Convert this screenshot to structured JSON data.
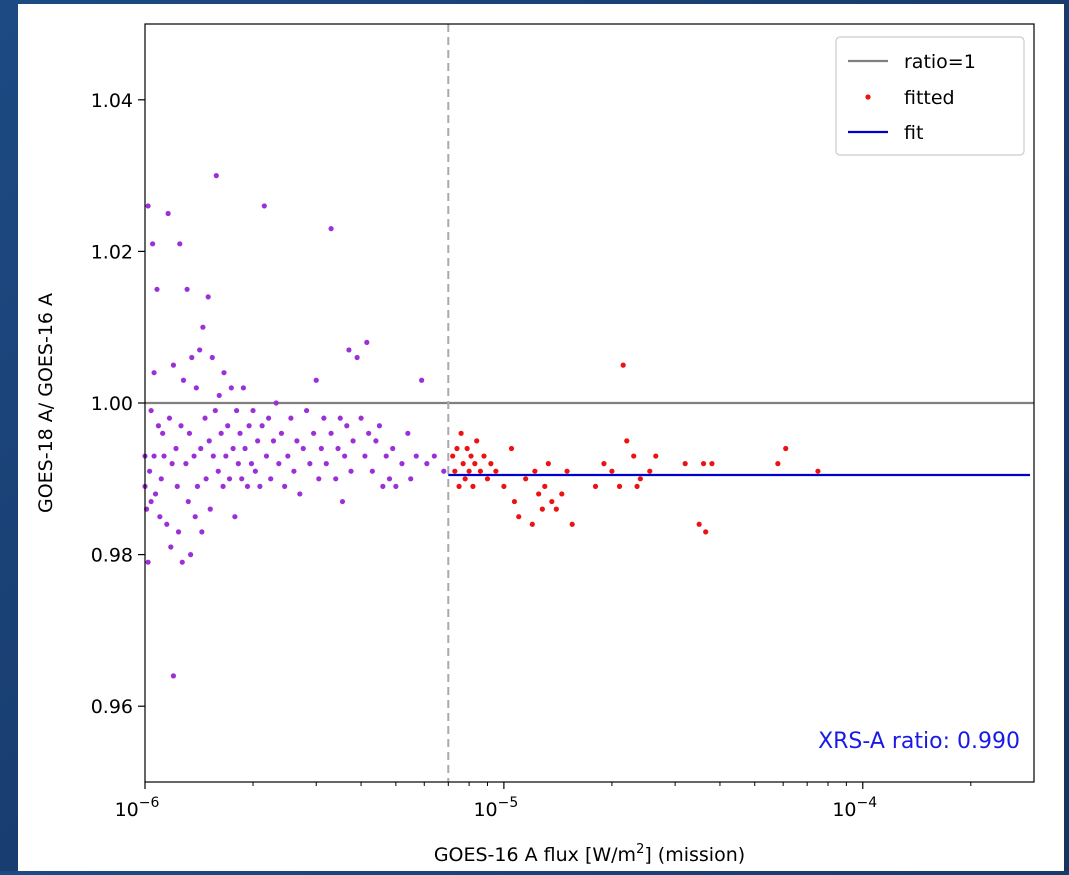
{
  "chart_data": {
    "type": "scatter",
    "xscale": "log",
    "xlim": [
      1e-06,
      0.0003
    ],
    "ylim": [
      0.95,
      1.05
    ],
    "xlabel_main": "GOES-16 A flux [W/m",
    "xlabel_sup": "2",
    "xlabel_tail": "] (mission)",
    "ylabel": "GOES-18 A/ GOES-16 A",
    "yticks": [
      0.96,
      0.98,
      1.0,
      1.02,
      1.04
    ],
    "ytick_labels": [
      "0.96",
      "0.98",
      "1.00",
      "1.02",
      "1.04"
    ],
    "xticks": [
      {
        "value": 1e-06,
        "base": "10",
        "exp": "−6"
      },
      {
        "value": 1e-05,
        "base": "10",
        "exp": "−5"
      },
      {
        "value": 0.0001,
        "base": "10",
        "exp": "−4"
      }
    ],
    "grid": false,
    "legend_position": "top-right",
    "reference_line": {
      "label": "ratio=1",
      "y": 1.0,
      "color": "#808080"
    },
    "threshold_line": {
      "x": 7e-06,
      "color": "#aaaaaa",
      "style": "dashed"
    },
    "fit_line": {
      "label": "fit",
      "y": 0.9905,
      "x_range": [
        7e-06,
        0.0003
      ],
      "color": "#0000cc"
    },
    "annotation": {
      "text": "XRS-A ratio: 0.990",
      "color": "#1a1ae6"
    },
    "series": [
      {
        "color": "#9b30d9",
        "points": [
          [
            1e-06,
            0.993
          ],
          [
            1e-06,
            0.989
          ],
          [
            1.01e-06,
            0.986
          ],
          [
            1.02e-06,
            0.979
          ],
          [
            1.02e-06,
            1.026
          ],
          [
            1.03e-06,
            0.991
          ],
          [
            1.04e-06,
            0.999
          ],
          [
            1.04e-06,
            0.987
          ],
          [
            1.05e-06,
            1.021
          ],
          [
            1.06e-06,
            1.004
          ],
          [
            1.06e-06,
            0.993
          ],
          [
            1.07e-06,
            0.988
          ],
          [
            1.08e-06,
            1.015
          ],
          [
            1.09e-06,
            0.997
          ],
          [
            1.1e-06,
            0.985
          ],
          [
            1.11e-06,
            0.99
          ],
          [
            1.12e-06,
            0.996
          ],
          [
            1.13e-06,
            0.993
          ],
          [
            1.15e-06,
            0.984
          ],
          [
            1.16e-06,
            1.025
          ],
          [
            1.17e-06,
            0.998
          ],
          [
            1.18e-06,
            0.981
          ],
          [
            1.19e-06,
            0.992
          ],
          [
            1.2e-06,
            0.964
          ],
          [
            1.2e-06,
            1.005
          ],
          [
            1.22e-06,
            0.994
          ],
          [
            1.23e-06,
            0.989
          ],
          [
            1.24e-06,
            0.983
          ],
          [
            1.25e-06,
            1.021
          ],
          [
            1.26e-06,
            0.997
          ],
          [
            1.27e-06,
            0.979
          ],
          [
            1.28e-06,
            1.003
          ],
          [
            1.3e-06,
            0.992
          ],
          [
            1.31e-06,
            1.015
          ],
          [
            1.32e-06,
            0.987
          ],
          [
            1.33e-06,
            0.996
          ],
          [
            1.34e-06,
            0.98
          ],
          [
            1.35e-06,
            1.006
          ],
          [
            1.37e-06,
            0.993
          ],
          [
            1.38e-06,
            0.985
          ],
          [
            1.39e-06,
            1.002
          ],
          [
            1.4e-06,
            0.989
          ],
          [
            1.42e-06,
            1.007
          ],
          [
            1.43e-06,
            0.994
          ],
          [
            1.44e-06,
            0.983
          ],
          [
            1.45e-06,
            1.01
          ],
          [
            1.47e-06,
            0.998
          ],
          [
            1.48e-06,
            0.99
          ],
          [
            1.5e-06,
            1.014
          ],
          [
            1.51e-06,
            0.995
          ],
          [
            1.52e-06,
            0.986
          ],
          [
            1.54e-06,
            1.006
          ],
          [
            1.55e-06,
            0.993
          ],
          [
            1.57e-06,
            0.999
          ],
          [
            1.58e-06,
            1.03
          ],
          [
            1.6e-06,
            0.991
          ],
          [
            1.61e-06,
            1.001
          ],
          [
            1.63e-06,
            0.996
          ],
          [
            1.65e-06,
            0.989
          ],
          [
            1.66e-06,
            1.004
          ],
          [
            1.68e-06,
            0.993
          ],
          [
            1.7e-06,
            0.997
          ],
          [
            1.72e-06,
            0.99
          ],
          [
            1.74e-06,
            1.002
          ],
          [
            1.76e-06,
            0.994
          ],
          [
            1.78e-06,
            0.985
          ],
          [
            1.8e-06,
            0.999
          ],
          [
            1.82e-06,
            0.992
          ],
          [
            1.84e-06,
            0.996
          ],
          [
            1.86e-06,
            0.99
          ],
          [
            1.88e-06,
            1.002
          ],
          [
            1.9e-06,
            0.994
          ],
          [
            1.93e-06,
            0.989
          ],
          [
            1.95e-06,
            0.997
          ],
          [
            1.98e-06,
            0.992
          ],
          [
            2e-06,
            0.999
          ],
          [
            2.03e-06,
            0.991
          ],
          [
            2.06e-06,
            0.995
          ],
          [
            2.09e-06,
            0.989
          ],
          [
            2.12e-06,
            0.997
          ],
          [
            2.15e-06,
            1.026
          ],
          [
            2.18e-06,
            0.993
          ],
          [
            2.21e-06,
            0.998
          ],
          [
            2.24e-06,
            0.99
          ],
          [
            2.28e-06,
            0.995
          ],
          [
            2.32e-06,
            1.0
          ],
          [
            2.36e-06,
            0.992
          ],
          [
            2.4e-06,
            0.996
          ],
          [
            2.45e-06,
            0.989
          ],
          [
            2.5e-06,
            0.993
          ],
          [
            2.55e-06,
            0.998
          ],
          [
            2.6e-06,
            0.991
          ],
          [
            2.65e-06,
            0.995
          ],
          [
            2.7e-06,
            0.988
          ],
          [
            2.76e-06,
            0.994
          ],
          [
            2.82e-06,
            0.999
          ],
          [
            2.88e-06,
            0.992
          ],
          [
            2.95e-06,
            0.996
          ],
          [
            3e-06,
            1.003
          ],
          [
            3.05e-06,
            0.99
          ],
          [
            3.1e-06,
            0.994
          ],
          [
            3.15e-06,
            0.998
          ],
          [
            3.2e-06,
            0.992
          ],
          [
            3.3e-06,
            1.023
          ],
          [
            3.3e-06,
            0.996
          ],
          [
            3.4e-06,
            0.99
          ],
          [
            3.45e-06,
            0.994
          ],
          [
            3.5e-06,
            0.998
          ],
          [
            3.55e-06,
            0.987
          ],
          [
            3.6e-06,
            0.993
          ],
          [
            3.65e-06,
            0.997
          ],
          [
            3.7e-06,
            1.007
          ],
          [
            3.75e-06,
            0.991
          ],
          [
            3.8e-06,
            0.995
          ],
          [
            3.9e-06,
            1.006
          ],
          [
            4e-06,
            0.998
          ],
          [
            4.1e-06,
            0.993
          ],
          [
            4.15e-06,
            1.008
          ],
          [
            4.2e-06,
            0.996
          ],
          [
            4.3e-06,
            0.991
          ],
          [
            4.4e-06,
            0.995
          ],
          [
            4.5e-06,
            0.997
          ],
          [
            4.6e-06,
            0.989
          ],
          [
            4.7e-06,
            0.993
          ],
          [
            4.8e-06,
            0.99
          ],
          [
            4.9e-06,
            0.994
          ],
          [
            5e-06,
            0.989
          ],
          [
            5.2e-06,
            0.992
          ],
          [
            5.4e-06,
            0.996
          ],
          [
            5.5e-06,
            0.99
          ],
          [
            5.7e-06,
            0.993
          ],
          [
            5.9e-06,
            1.003
          ],
          [
            6.1e-06,
            0.992
          ],
          [
            6.4e-06,
            0.993
          ],
          [
            6.8e-06,
            0.991
          ]
        ]
      },
      {
        "name": "fitted",
        "color": "#ee1111",
        "points": [
          [
            7.2e-06,
            0.993
          ],
          [
            7.3e-06,
            0.991
          ],
          [
            7.4e-06,
            0.994
          ],
          [
            7.5e-06,
            0.989
          ],
          [
            7.6e-06,
            0.996
          ],
          [
            7.7e-06,
            0.992
          ],
          [
            7.8e-06,
            0.99
          ],
          [
            7.9e-06,
            0.994
          ],
          [
            8e-06,
            0.991
          ],
          [
            8.1e-06,
            0.993
          ],
          [
            8.2e-06,
            0.989
          ],
          [
            8.3e-06,
            0.992
          ],
          [
            8.4e-06,
            0.995
          ],
          [
            8.6e-06,
            0.991
          ],
          [
            8.8e-06,
            0.993
          ],
          [
            9e-06,
            0.99
          ],
          [
            9.2e-06,
            0.992
          ],
          [
            9.5e-06,
            0.991
          ],
          [
            1e-05,
            0.989
          ],
          [
            1.05e-05,
            0.994
          ],
          [
            1.07e-05,
            0.987
          ],
          [
            1.1e-05,
            0.985
          ],
          [
            1.15e-05,
            0.99
          ],
          [
            1.2e-05,
            0.984
          ],
          [
            1.22e-05,
            0.991
          ],
          [
            1.25e-05,
            0.988
          ],
          [
            1.28e-05,
            0.986
          ],
          [
            1.3e-05,
            0.989
          ],
          [
            1.33e-05,
            0.992
          ],
          [
            1.36e-05,
            0.987
          ],
          [
            1.4e-05,
            0.986
          ],
          [
            1.45e-05,
            0.988
          ],
          [
            1.5e-05,
            0.991
          ],
          [
            1.55e-05,
            0.984
          ],
          [
            1.8e-05,
            0.989
          ],
          [
            1.9e-05,
            0.992
          ],
          [
            2e-05,
            0.991
          ],
          [
            2.1e-05,
            0.989
          ],
          [
            2.15e-05,
            1.005
          ],
          [
            2.2e-05,
            0.995
          ],
          [
            2.3e-05,
            0.993
          ],
          [
            2.35e-05,
            0.989
          ],
          [
            2.4e-05,
            0.99
          ],
          [
            2.55e-05,
            0.991
          ],
          [
            2.65e-05,
            0.993
          ],
          [
            3.2e-05,
            0.992
          ],
          [
            3.5e-05,
            0.984
          ],
          [
            3.6e-05,
            0.992
          ],
          [
            3.65e-05,
            0.983
          ],
          [
            3.8e-05,
            0.992
          ],
          [
            5.8e-05,
            0.992
          ],
          [
            6.1e-05,
            0.994
          ],
          [
            7.5e-05,
            0.991
          ]
        ]
      }
    ]
  }
}
